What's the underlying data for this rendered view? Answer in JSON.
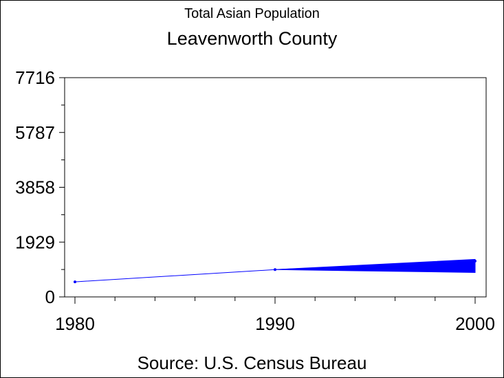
{
  "chart_data": {
    "type": "line",
    "subtitle": "Total Asian Population",
    "title": "Leavenworth County",
    "source": "Source: U.S. Census Bureau",
    "x": [
      1980,
      1990,
      2000
    ],
    "xticks": [
      "1980",
      "1990",
      "2000"
    ],
    "yticks": [
      "0",
      "1929",
      "3858",
      "5787",
      "7716"
    ],
    "ylim": [
      0,
      7716
    ],
    "xlim": [
      1980,
      2000
    ],
    "series": [
      {
        "values": [
          530,
          960,
          1260
        ],
        "color": "#0000ff"
      }
    ],
    "band": {
      "x": [
        1990,
        2000
      ],
      "upper": [
        960,
        1320
      ],
      "lower": [
        960,
        860
      ],
      "color": "#0000ff"
    },
    "grid": false
  }
}
